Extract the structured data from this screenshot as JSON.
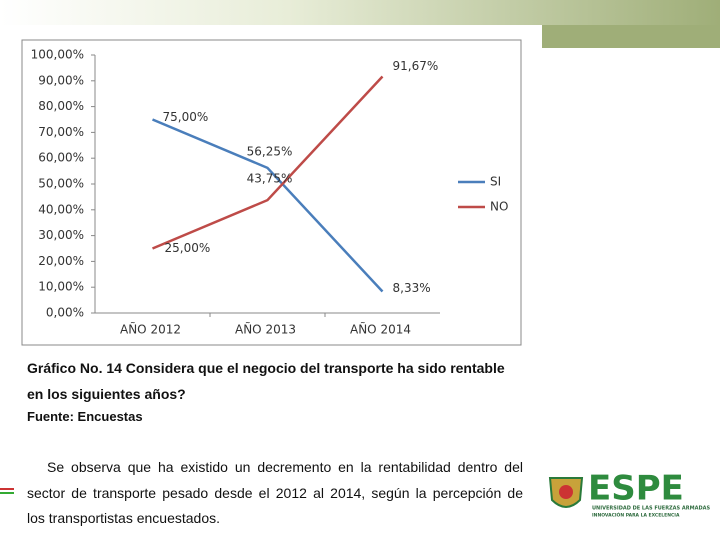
{
  "chart_data": {
    "type": "line",
    "categories": [
      "AÑO 2012",
      "AÑO 2013",
      "AÑO 2014"
    ],
    "series": [
      {
        "name": "SI",
        "color": "#4a7ebb",
        "values": [
          75,
          56.25,
          8.33
        ],
        "value_labels": [
          "75,00%",
          "56,25%",
          "8,33%"
        ]
      },
      {
        "name": "NO",
        "color": "#be4b48",
        "values": [
          25,
          43.75,
          91.67
        ],
        "value_labels": [
          "25,00%",
          "43,75%",
          "91,67%"
        ]
      }
    ],
    "ylim": [
      0,
      100
    ],
    "yticks": [
      {
        "value": 0,
        "label": "0,00%"
      },
      {
        "value": 10,
        "label": "10,00%"
      },
      {
        "value": 20,
        "label": "20,00%"
      },
      {
        "value": 30,
        "label": "30,00%"
      },
      {
        "value": 40,
        "label": "40,00%"
      },
      {
        "value": 50,
        "label": "50,00%"
      },
      {
        "value": 60,
        "label": "60,00%"
      },
      {
        "value": 70,
        "label": "70,00%"
      },
      {
        "value": 80,
        "label": "80,00%"
      },
      {
        "value": 90,
        "label": "90,00%"
      },
      {
        "value": 100,
        "label": "100,00%"
      }
    ],
    "grid": false,
    "legend": "right"
  },
  "slide": {
    "caption": [
      "Gráfico No. 14 Considera que el negocio del transporte ha sido rentable",
      "en los siguientes años?"
    ],
    "source": "Fuente: Encuestas",
    "paragraph": [
      "Se observa que ha existido un decremento en la rentabilidad dentro del",
      "sector de transporte pesado desde el 2012 al 2014, según la percepción de",
      "los transportistas encuestados."
    ],
    "logo": {
      "name": "ESPE",
      "line1": "UNIVERSIDAD DE LAS FUERZAS ARMADAS",
      "line2": "INNOVACIÓN PARA LA EXCELENCIA"
    }
  }
}
